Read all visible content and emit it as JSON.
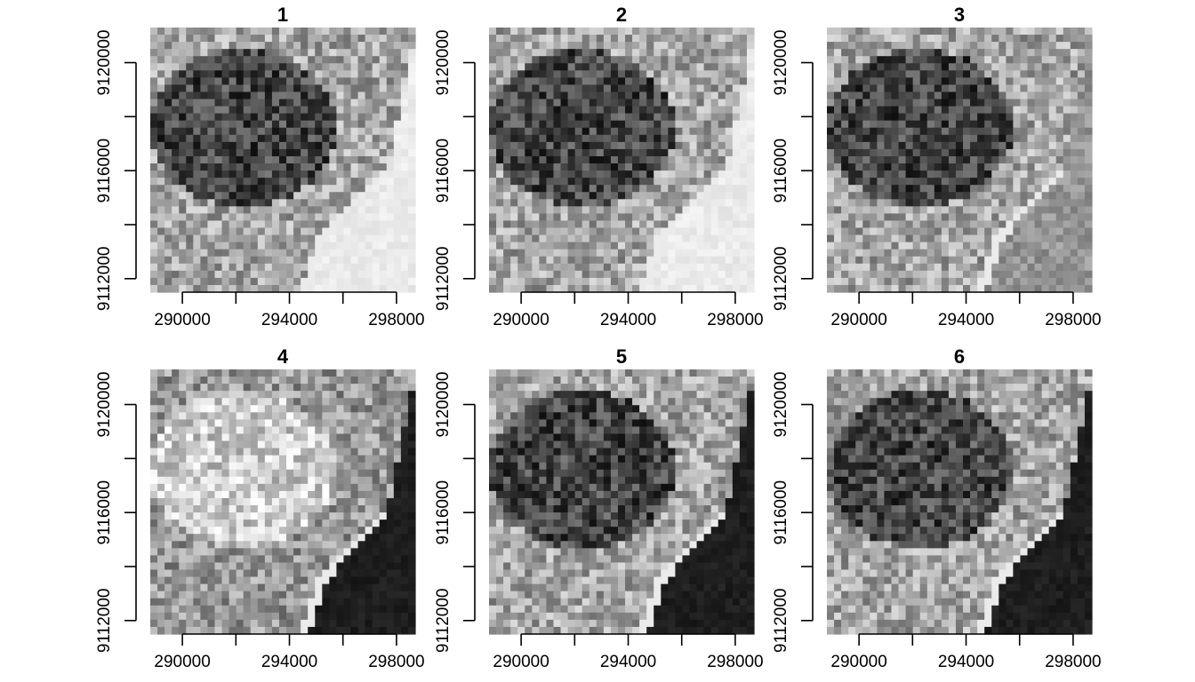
{
  "chart_data": {
    "type": "heatmap",
    "colormap": "grayscale",
    "panels": [
      {
        "title": "1",
        "water_tone": "light"
      },
      {
        "title": "2",
        "water_tone": "light"
      },
      {
        "title": "3",
        "water_tone": "mid-gray"
      },
      {
        "title": "4",
        "water_tone": "dark"
      },
      {
        "title": "5",
        "water_tone": "dark"
      },
      {
        "title": "6",
        "water_tone": "dark"
      }
    ],
    "x_ticks": [
      290000,
      292000,
      294000,
      296000,
      298000
    ],
    "x_tick_labels": [
      "290000",
      "294000",
      "298000"
    ],
    "y_ticks": [
      9112000,
      9114000,
      9116000,
      9118000,
      9120000
    ],
    "y_tick_labels": [
      "9112000",
      "9116000",
      "9120000"
    ],
    "xlim": [
      288800,
      298700
    ],
    "ylim": [
      9111500,
      9121300
    ],
    "grid": false,
    "legend": "none",
    "colors": {
      "background": "#ffffff",
      "axis": "#000000"
    }
  }
}
